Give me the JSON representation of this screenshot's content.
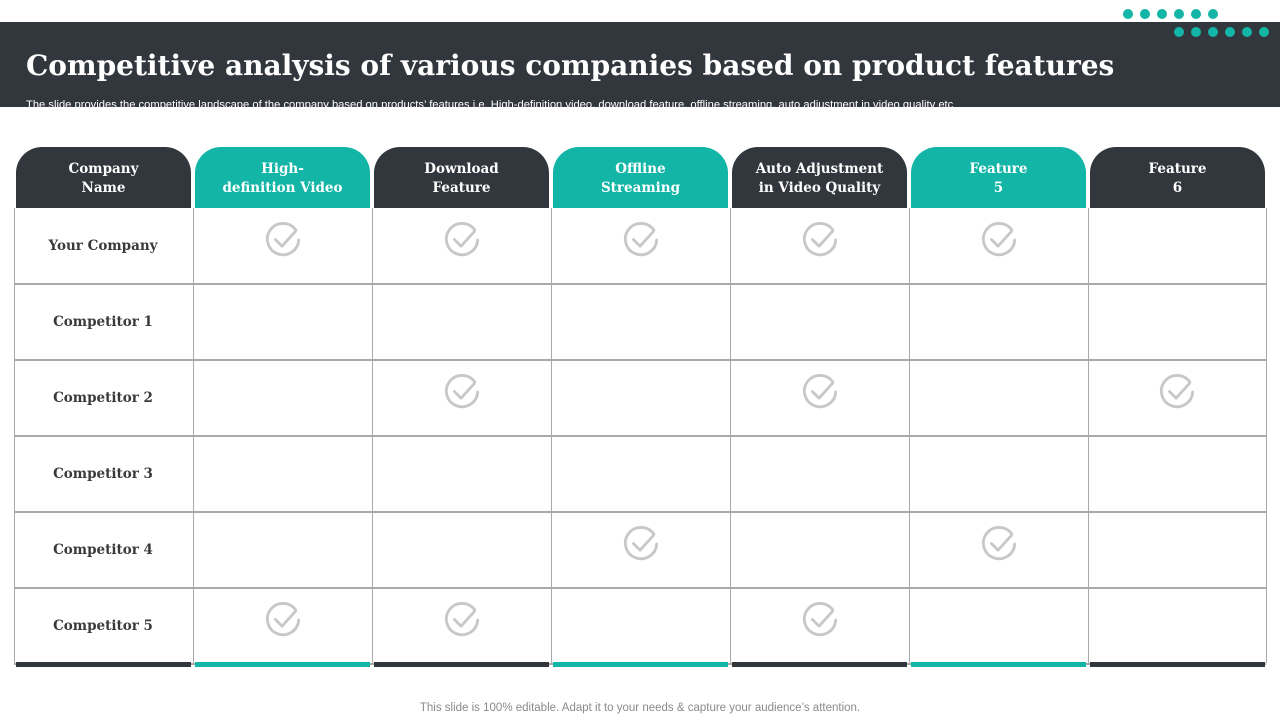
{
  "header": {
    "title": "Competitive analysis of various companies based on product features",
    "subtitle": "The slide provides the competitive landscape of the company based on products’ features i.e. High-definition video, download feature, offline streaming, auto adjustment in video quality etc"
  },
  "colors": {
    "dark": "#32363d",
    "teal": "#12b5a6",
    "check": "#c8c8c8",
    "grid": "#a9a9a9"
  },
  "table": {
    "columns": [
      {
        "label": "Company\nName",
        "style": "dark"
      },
      {
        "label": "High-\ndefinition Video",
        "style": "teal"
      },
      {
        "label": "Download\nFeature",
        "style": "dark"
      },
      {
        "label": "Offline\nStreaming",
        "style": "teal"
      },
      {
        "label": "Auto Adjustment\nin Video Quality",
        "style": "dark"
      },
      {
        "label": "Feature\n5",
        "style": "teal"
      },
      {
        "label": "Feature\n6",
        "style": "dark"
      }
    ],
    "rows": [
      {
        "name": "Your Company",
        "checks": [
          true,
          true,
          true,
          true,
          true,
          false
        ]
      },
      {
        "name": "Competitor 1",
        "checks": [
          false,
          false,
          false,
          false,
          false,
          false
        ]
      },
      {
        "name": "Competitor 2",
        "checks": [
          false,
          true,
          false,
          true,
          false,
          true
        ]
      },
      {
        "name": "Competitor 3",
        "checks": [
          false,
          false,
          false,
          false,
          false,
          false
        ]
      },
      {
        "name": "Competitor 4",
        "checks": [
          false,
          false,
          true,
          false,
          true,
          false
        ]
      },
      {
        "name": "Competitor 5",
        "checks": [
          true,
          true,
          false,
          true,
          false,
          false
        ]
      }
    ],
    "check_icon": "check-circle-icon"
  },
  "footer": {
    "note": "This slide is 100% editable. Adapt it to your needs & capture your audience’s attention."
  }
}
